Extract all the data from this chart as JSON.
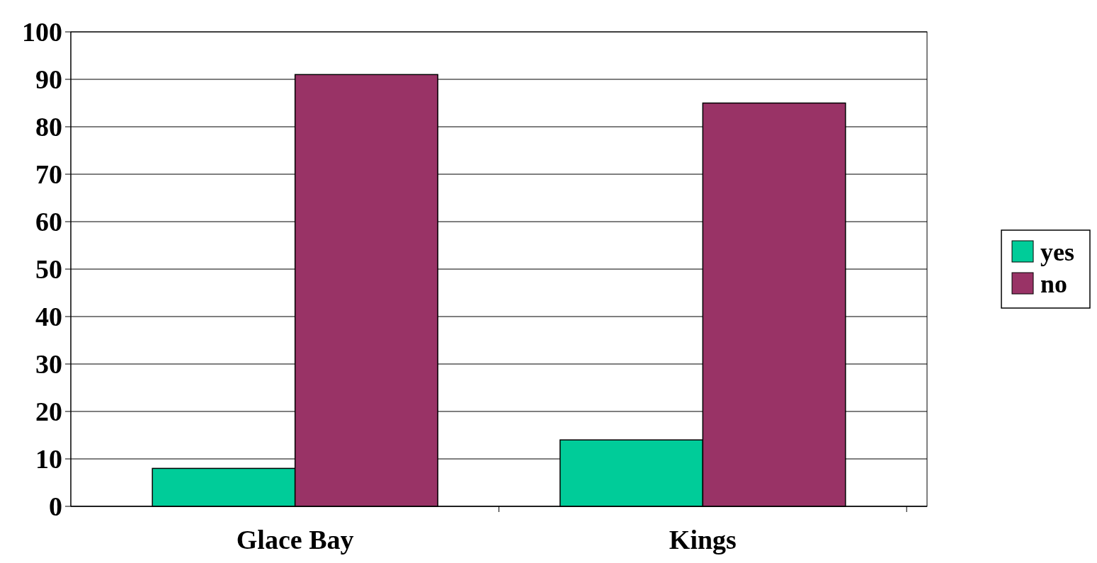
{
  "chart_data": {
    "type": "bar",
    "categories": [
      "Glace Bay",
      "Kings"
    ],
    "series": [
      {
        "name": "yes",
        "color": "#00cc99",
        "values": [
          8,
          14
        ]
      },
      {
        "name": "no",
        "color": "#993366",
        "values": [
          91,
          85
        ]
      }
    ],
    "ylim": [
      0,
      100
    ],
    "yticks": [
      0,
      10,
      20,
      30,
      40,
      50,
      60,
      70,
      80,
      90,
      100
    ],
    "grid": "y",
    "legend": "right"
  }
}
